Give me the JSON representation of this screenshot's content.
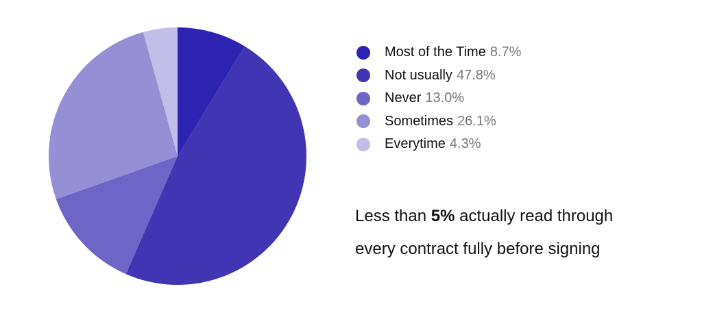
{
  "chart_data": {
    "type": "pie",
    "slices": [
      {
        "label": "Most of the Time",
        "value": 8.7,
        "value_label": "8.7%",
        "color": "#2E22B0"
      },
      {
        "label": "Not usually",
        "value": 47.8,
        "value_label": "47.8%",
        "color": "#4135B3"
      },
      {
        "label": "Never",
        "value": 13.0,
        "value_label": "13.0%",
        "color": "#6F65C6"
      },
      {
        "label": "Sometimes",
        "value": 26.1,
        "value_label": "26.1%",
        "color": "#968FD5"
      },
      {
        "label": "Everytime",
        "value": 4.3,
        "value_label": "4.3%",
        "color": "#C3BEE7"
      }
    ],
    "start_angle": "12 o'clock",
    "direction": "clockwise",
    "legend_placement": "right"
  },
  "annotation": {
    "line1_before": "Less than ",
    "line1_bold": "5%",
    "line1_after": " actually read through",
    "line2": "every contract fully before signing"
  }
}
